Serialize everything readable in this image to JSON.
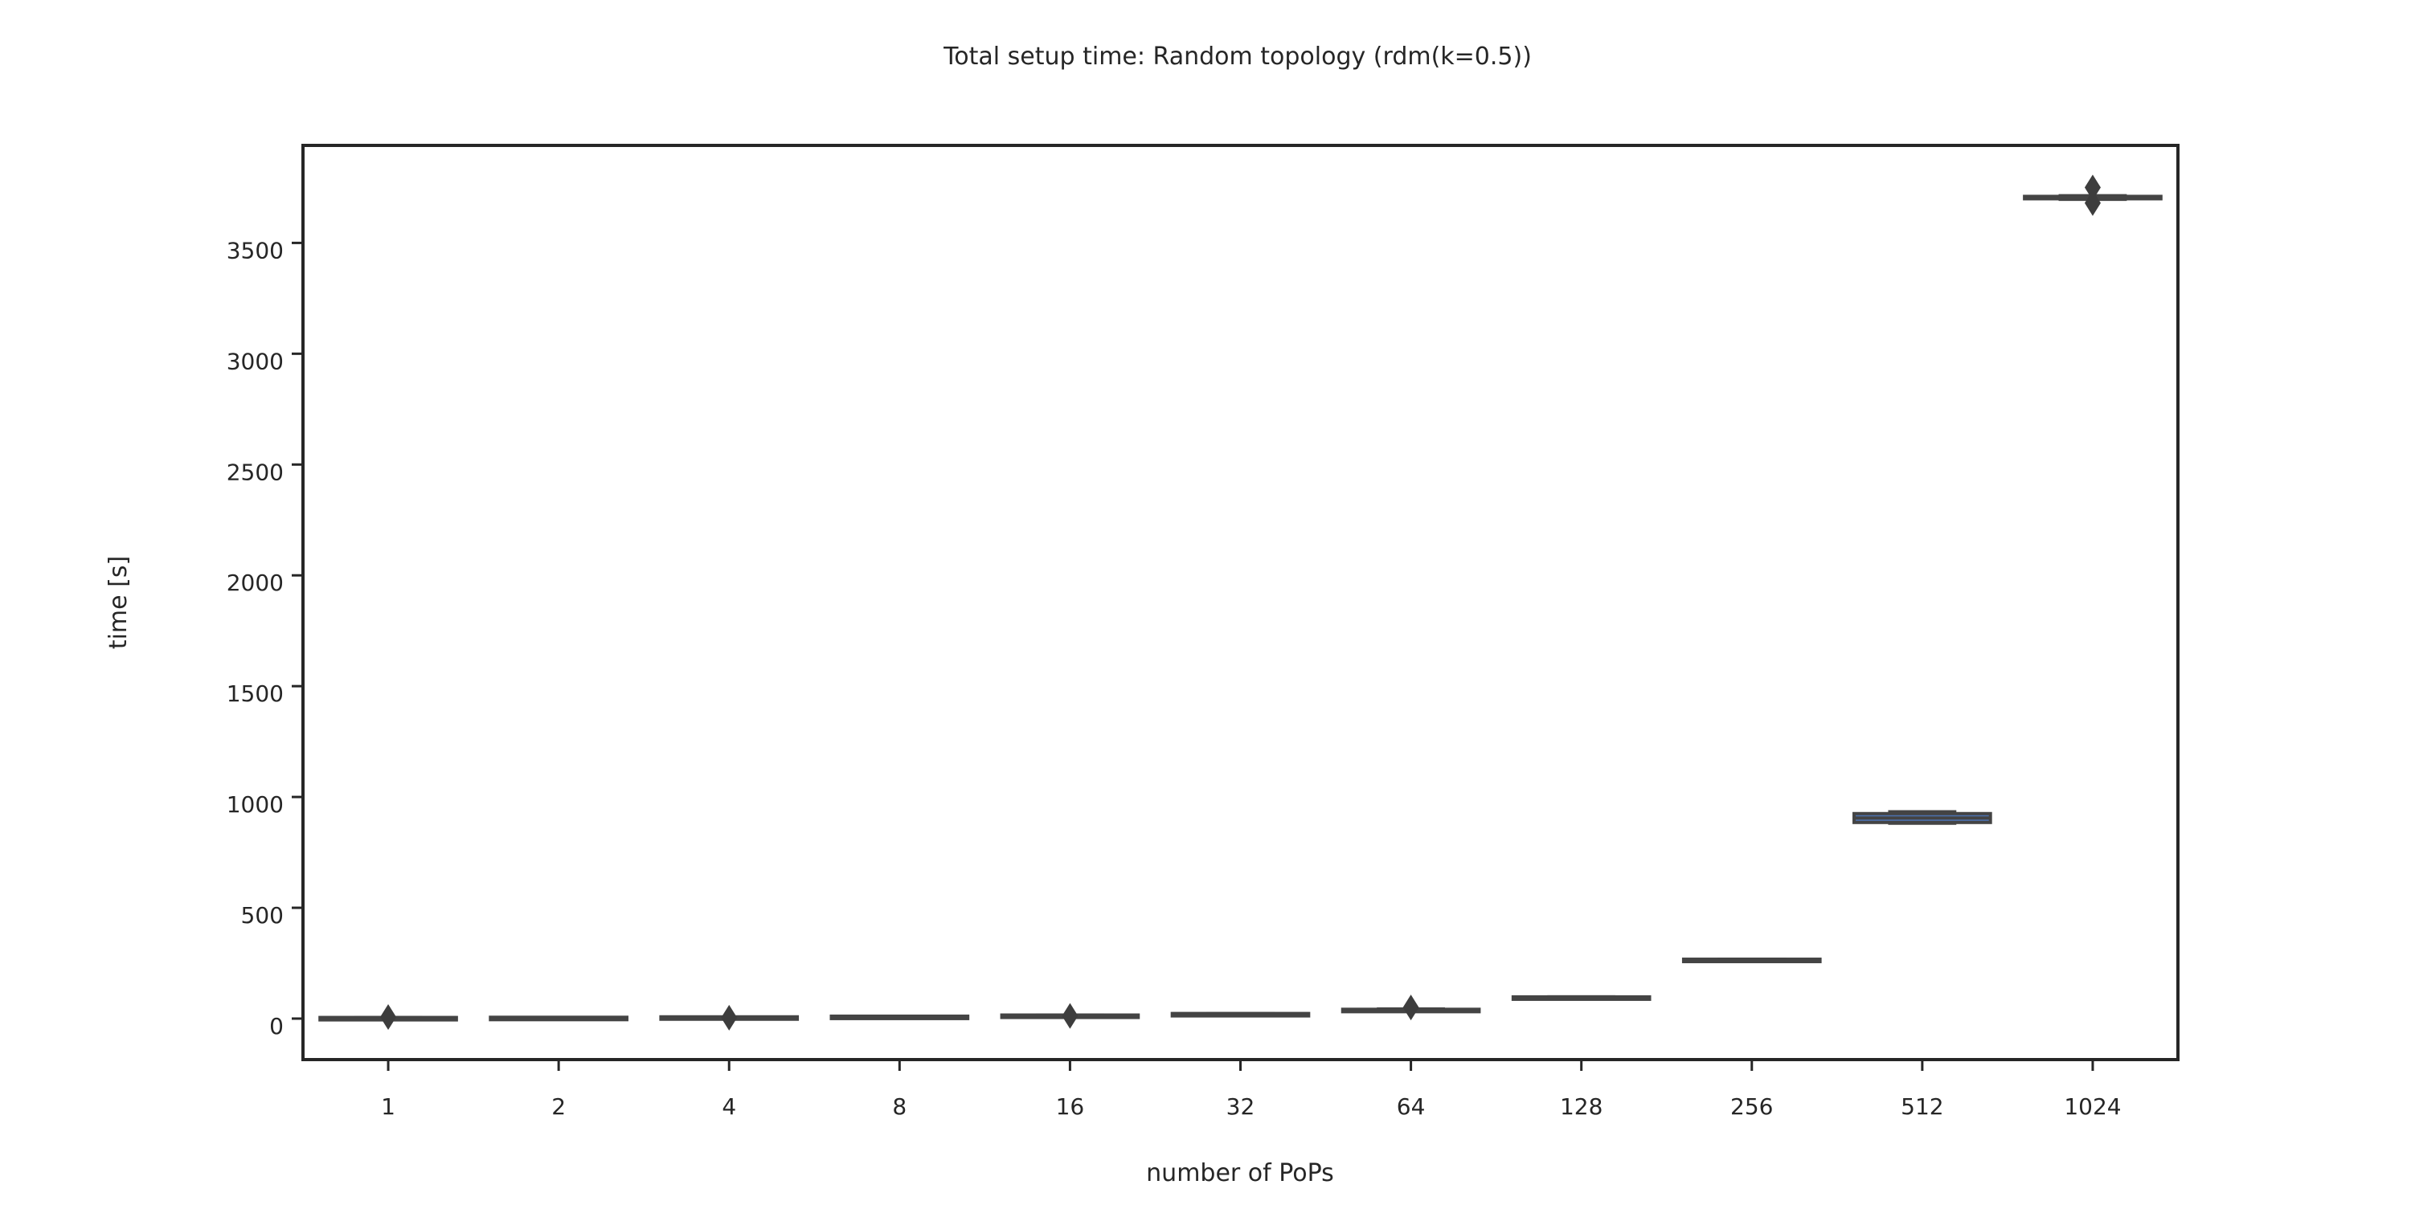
{
  "chart_data": {
    "type": "box",
    "title": "Total setup time: Random topology (rdm(k=0.5))",
    "xlabel": "number of PoPs",
    "ylabel": "time [s]",
    "categories": [
      "1",
      "2",
      "4",
      "8",
      "16",
      "32",
      "64",
      "128",
      "256",
      "512",
      "1024"
    ],
    "ylim": [
      -185,
      3940
    ],
    "yticks": [
      0,
      500,
      1000,
      1500,
      2000,
      2500,
      3000,
      3500
    ],
    "grid": false,
    "box_color": "#4c72b0",
    "line_color": "#444444",
    "boxes": [
      {
        "category": "1",
        "whislo": 2,
        "q1": 3,
        "median": 4,
        "q3": 5,
        "whishi": 6,
        "outliers": [
          7
        ]
      },
      {
        "category": "2",
        "whislo": 3,
        "q1": 4,
        "median": 5,
        "q3": 6,
        "whishi": 7,
        "outliers": []
      },
      {
        "category": "4",
        "whislo": 5,
        "q1": 6,
        "median": 7,
        "q3": 8,
        "whishi": 9,
        "outliers": [
          4
        ]
      },
      {
        "category": "8",
        "whislo": 8,
        "q1": 9,
        "median": 10,
        "q3": 11,
        "whishi": 12,
        "outliers": []
      },
      {
        "category": "16",
        "whislo": 13,
        "q1": 14,
        "median": 15,
        "q3": 16,
        "whishi": 17,
        "outliers": [
          12
        ]
      },
      {
        "category": "32",
        "whislo": 20,
        "q1": 21,
        "median": 22,
        "q3": 23,
        "whishi": 24,
        "outliers": []
      },
      {
        "category": "64",
        "whislo": 36,
        "q1": 38,
        "median": 40,
        "q3": 42,
        "whishi": 45,
        "outliers": [
          50
        ]
      },
      {
        "category": "128",
        "whislo": 92,
        "q1": 94,
        "median": 96,
        "q3": 98,
        "whishi": 100,
        "outliers": []
      },
      {
        "category": "256",
        "whislo": 262,
        "q1": 264,
        "median": 266,
        "q3": 268,
        "whishi": 270,
        "outliers": []
      },
      {
        "category": "512",
        "whislo": 880,
        "q1": 885,
        "median": 905,
        "q3": 925,
        "whishi": 935,
        "outliers": []
      },
      {
        "category": "1024",
        "whislo": 3695,
        "q1": 3700,
        "median": 3705,
        "q3": 3710,
        "whishi": 3715,
        "outliers": [
          3680,
          3750
        ]
      }
    ]
  }
}
